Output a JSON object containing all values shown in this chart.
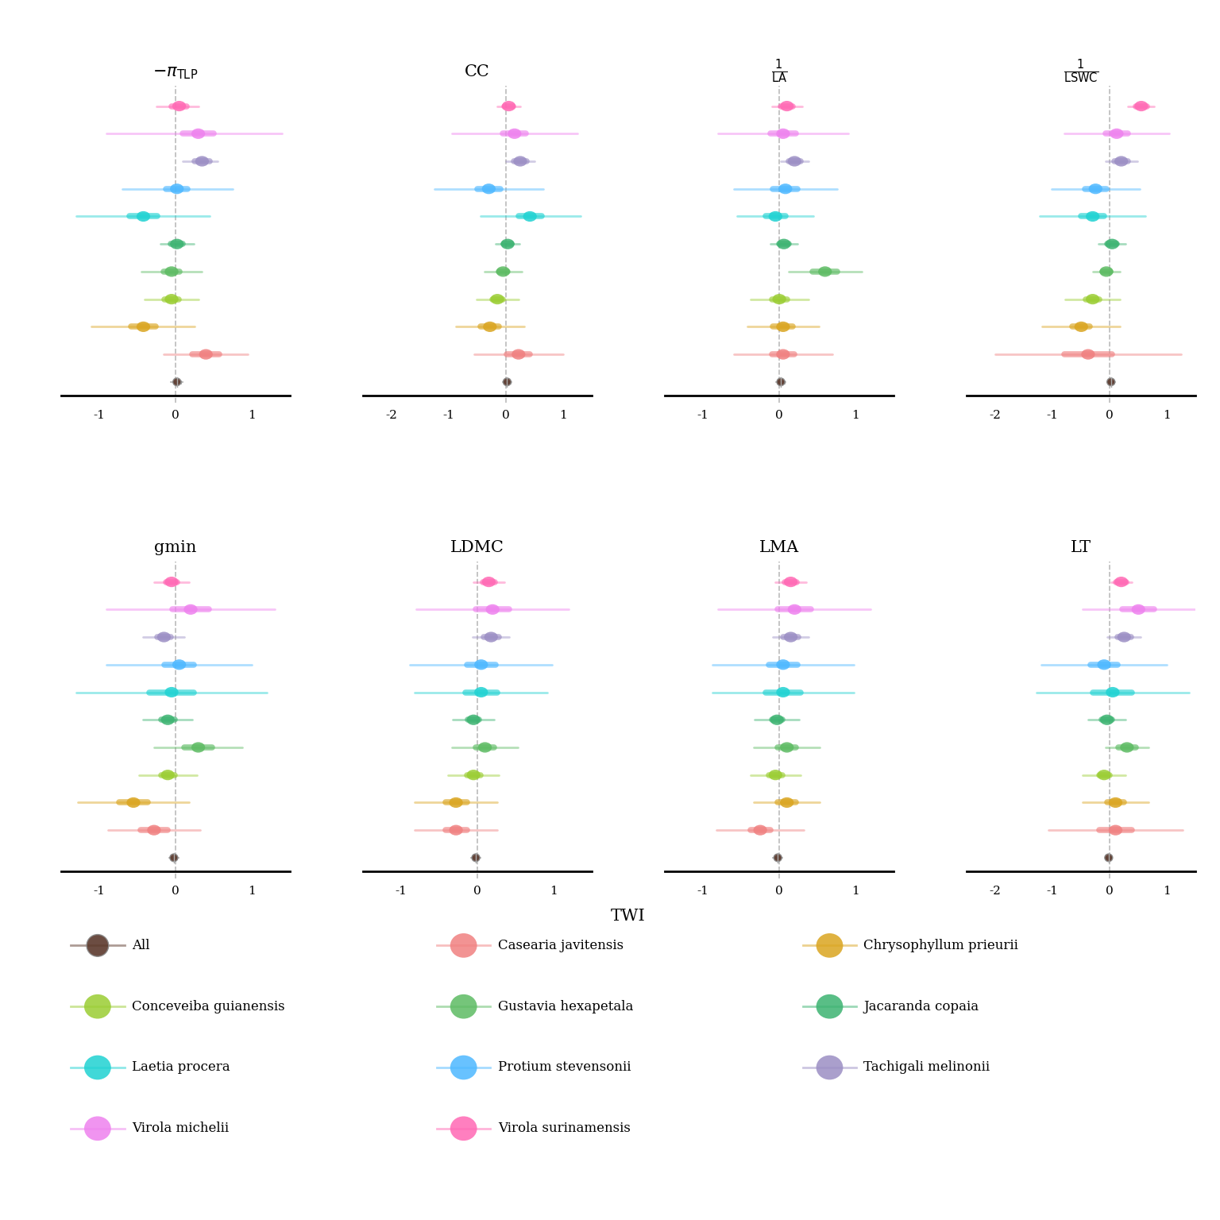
{
  "panels": [
    {
      "title": "$-\\pi_{\\mathrm{TLP}}$",
      "xlim": [
        -1.5,
        1.5
      ],
      "xticks": [
        -1,
        0,
        1
      ]
    },
    {
      "title": "CC",
      "xlim": [
        -2.5,
        1.5
      ],
      "xticks": [
        -2,
        -1,
        0,
        1
      ]
    },
    {
      "title": "$\\frac{1}{\\mathrm{LA}}$",
      "xlim": [
        -1.5,
        1.5
      ],
      "xticks": [
        -1,
        0,
        1
      ]
    },
    {
      "title": "$\\frac{1}{\\mathrm{LSWC}}$",
      "xlim": [
        -2.5,
        1.5
      ],
      "xticks": [
        -2,
        -1,
        0,
        1
      ]
    },
    {
      "title": "gmin",
      "xlim": [
        -1.5,
        1.5
      ],
      "xticks": [
        -1,
        0,
        1
      ]
    },
    {
      "title": "LDMC",
      "xlim": [
        -1.5,
        1.5
      ],
      "xticks": [
        -1,
        0,
        1
      ]
    },
    {
      "title": "LMA",
      "xlim": [
        -1.5,
        1.5
      ],
      "xticks": [
        -1,
        0,
        1
      ]
    },
    {
      "title": "LT",
      "xlim": [
        -2.5,
        1.5
      ],
      "xticks": [
        -2,
        -1,
        0,
        1
      ]
    }
  ],
  "colors": {
    "Virola surinamensis": "#FF69B4",
    "Virola michelii": "#EE82EE",
    "Tachigali melinonii": "#9B8EC4",
    "Protium stevensonii": "#4DB8FF",
    "Laetia procera": "#20D2D2",
    "Jacaranda copaia": "#3CB371",
    "Gustavia hexapetala": "#5DBB63",
    "Conceveiba guianensis": "#9ACD32",
    "Chrysophyllum prieurii": "#DAA520",
    "Casearia javitensis": "#F08080",
    "All": "#5C3A2D"
  },
  "data": {
    "neg_piTLP": {
      "Virola surinamensis": {
        "mean": 0.05,
        "lo": -0.25,
        "hi": 0.3,
        "lo2": -0.05,
        "hi2": 0.15
      },
      "Virola michelii": {
        "mean": 0.3,
        "lo": -0.9,
        "hi": 1.4,
        "lo2": 0.1,
        "hi2": 0.5
      },
      "Tachigali melinonii": {
        "mean": 0.35,
        "lo": 0.1,
        "hi": 0.55,
        "lo2": 0.25,
        "hi2": 0.45
      },
      "Protium stevensonii": {
        "mean": 0.02,
        "lo": -0.7,
        "hi": 0.75,
        "lo2": -0.12,
        "hi2": 0.16
      },
      "Laetia procera": {
        "mean": -0.42,
        "lo": -1.3,
        "hi": 0.45,
        "lo2": -0.6,
        "hi2": -0.24
      },
      "Jacaranda copaia": {
        "mean": 0.02,
        "lo": -0.2,
        "hi": 0.24,
        "lo2": -0.06,
        "hi2": 0.1
      },
      "Gustavia hexapetala": {
        "mean": -0.05,
        "lo": -0.45,
        "hi": 0.35,
        "lo2": -0.15,
        "hi2": 0.05
      },
      "Conceveiba guianensis": {
        "mean": -0.05,
        "lo": -0.4,
        "hi": 0.3,
        "lo2": -0.14,
        "hi2": 0.04
      },
      "Chrysophyllum prieurii": {
        "mean": -0.42,
        "lo": -1.1,
        "hi": 0.25,
        "lo2": -0.58,
        "hi2": -0.26
      },
      "Casearia javitensis": {
        "mean": 0.4,
        "lo": -0.15,
        "hi": 0.95,
        "lo2": 0.22,
        "hi2": 0.58
      },
      "All": {
        "mean": 0.02,
        "lo": -0.06,
        "hi": 0.1,
        "lo2": -0.01,
        "hi2": 0.05
      }
    },
    "CC": {
      "Virola surinamensis": {
        "mean": 0.05,
        "lo": -0.15,
        "hi": 0.25,
        "lo2": -0.03,
        "hi2": 0.13
      },
      "Virola michelii": {
        "mean": 0.15,
        "lo": -0.95,
        "hi": 1.25,
        "lo2": -0.05,
        "hi2": 0.35
      },
      "Tachigali melinonii": {
        "mean": 0.25,
        "lo": 0.0,
        "hi": 0.5,
        "lo2": 0.14,
        "hi2": 0.36
      },
      "Protium stevensonii": {
        "mean": -0.3,
        "lo": -1.25,
        "hi": 0.65,
        "lo2": -0.5,
        "hi2": -0.1
      },
      "Laetia procera": {
        "mean": 0.42,
        "lo": -0.45,
        "hi": 1.3,
        "lo2": 0.22,
        "hi2": 0.62
      },
      "Jacaranda copaia": {
        "mean": 0.03,
        "lo": -0.18,
        "hi": 0.24,
        "lo2": -0.04,
        "hi2": 0.1
      },
      "Gustavia hexapetala": {
        "mean": -0.05,
        "lo": -0.38,
        "hi": 0.28,
        "lo2": -0.13,
        "hi2": 0.03
      },
      "Conceveiba guianensis": {
        "mean": -0.15,
        "lo": -0.52,
        "hi": 0.22,
        "lo2": -0.24,
        "hi2": -0.06
      },
      "Chrysophyllum prieurii": {
        "mean": -0.28,
        "lo": -0.88,
        "hi": 0.32,
        "lo2": -0.44,
        "hi2": -0.12
      },
      "Casearia javitensis": {
        "mean": 0.22,
        "lo": -0.55,
        "hi": 1.0,
        "lo2": 0.02,
        "hi2": 0.42
      },
      "All": {
        "mean": 0.02,
        "lo": -0.06,
        "hi": 0.1,
        "lo2": -0.01,
        "hi2": 0.05
      }
    },
    "inv_LA": {
      "Virola surinamensis": {
        "mean": 0.1,
        "lo": -0.1,
        "hi": 0.3,
        "lo2": 0.02,
        "hi2": 0.18
      },
      "Virola michelii": {
        "mean": 0.05,
        "lo": -0.8,
        "hi": 0.9,
        "lo2": -0.12,
        "hi2": 0.22
      },
      "Tachigali melinonii": {
        "mean": 0.2,
        "lo": 0.02,
        "hi": 0.38,
        "lo2": 0.12,
        "hi2": 0.28
      },
      "Protium stevensonii": {
        "mean": 0.08,
        "lo": -0.6,
        "hi": 0.76,
        "lo2": -0.08,
        "hi2": 0.24
      },
      "Laetia procera": {
        "mean": -0.05,
        "lo": -0.55,
        "hi": 0.45,
        "lo2": -0.18,
        "hi2": 0.08
      },
      "Jacaranda copaia": {
        "mean": 0.06,
        "lo": -0.12,
        "hi": 0.24,
        "lo2": 0.0,
        "hi2": 0.12
      },
      "Gustavia hexapetala": {
        "mean": 0.6,
        "lo": 0.12,
        "hi": 1.08,
        "lo2": 0.44,
        "hi2": 0.76
      },
      "Conceveiba guianensis": {
        "mean": 0.0,
        "lo": -0.38,
        "hi": 0.38,
        "lo2": -0.1,
        "hi2": 0.1
      },
      "Chrysophyllum prieurii": {
        "mean": 0.05,
        "lo": -0.42,
        "hi": 0.52,
        "lo2": -0.08,
        "hi2": 0.18
      },
      "Casearia javitensis": {
        "mean": 0.05,
        "lo": -0.6,
        "hi": 0.7,
        "lo2": -0.1,
        "hi2": 0.2
      },
      "All": {
        "mean": 0.02,
        "lo": -0.04,
        "hi": 0.08,
        "lo2": -0.01,
        "hi2": 0.05
      }
    },
    "inv_LSWC": {
      "Virola surinamensis": {
        "mean": 0.55,
        "lo": 0.32,
        "hi": 0.78,
        "lo2": 0.45,
        "hi2": 0.65
      },
      "Virola michelii": {
        "mean": 0.12,
        "lo": -0.8,
        "hi": 1.04,
        "lo2": -0.08,
        "hi2": 0.32
      },
      "Tachigali melinonii": {
        "mean": 0.2,
        "lo": -0.08,
        "hi": 0.48,
        "lo2": 0.08,
        "hi2": 0.32
      },
      "Protium stevensonii": {
        "mean": -0.25,
        "lo": -1.02,
        "hi": 0.52,
        "lo2": -0.44,
        "hi2": -0.06
      },
      "Laetia procera": {
        "mean": -0.3,
        "lo": -1.22,
        "hi": 0.62,
        "lo2": -0.5,
        "hi2": -0.1
      },
      "Jacaranda copaia": {
        "mean": 0.04,
        "lo": -0.2,
        "hi": 0.28,
        "lo2": -0.04,
        "hi2": 0.12
      },
      "Gustavia hexapetala": {
        "mean": -0.06,
        "lo": -0.3,
        "hi": 0.18,
        "lo2": -0.13,
        "hi2": 0.01
      },
      "Conceveiba guianensis": {
        "mean": -0.3,
        "lo": -0.78,
        "hi": 0.18,
        "lo2": -0.42,
        "hi2": -0.18
      },
      "Chrysophyllum prieurii": {
        "mean": -0.5,
        "lo": -1.18,
        "hi": 0.18,
        "lo2": -0.65,
        "hi2": -0.35
      },
      "Casearia javitensis": {
        "mean": -0.38,
        "lo": -2.0,
        "hi": 1.24,
        "lo2": -0.8,
        "hi2": 0.04
      },
      "All": {
        "mean": 0.02,
        "lo": -0.05,
        "hi": 0.09,
        "lo2": -0.01,
        "hi2": 0.05
      }
    },
    "gmin": {
      "Virola surinamensis": {
        "mean": -0.05,
        "lo": -0.28,
        "hi": 0.18,
        "lo2": -0.12,
        "hi2": 0.02
      },
      "Virola michelii": {
        "mean": 0.2,
        "lo": -0.9,
        "hi": 1.3,
        "lo2": -0.04,
        "hi2": 0.44
      },
      "Tachigali melinonii": {
        "mean": -0.15,
        "lo": -0.42,
        "hi": 0.12,
        "lo2": -0.24,
        "hi2": -0.06
      },
      "Protium stevensonii": {
        "mean": 0.05,
        "lo": -0.9,
        "hi": 1.0,
        "lo2": -0.14,
        "hi2": 0.24
      },
      "Laetia procera": {
        "mean": -0.05,
        "lo": -1.3,
        "hi": 1.2,
        "lo2": -0.34,
        "hi2": 0.24
      },
      "Jacaranda copaia": {
        "mean": -0.1,
        "lo": -0.42,
        "hi": 0.22,
        "lo2": -0.19,
        "hi2": -0.01
      },
      "Gustavia hexapetala": {
        "mean": 0.3,
        "lo": -0.28,
        "hi": 0.88,
        "lo2": 0.12,
        "hi2": 0.48
      },
      "Conceveiba guianensis": {
        "mean": -0.1,
        "lo": -0.48,
        "hi": 0.28,
        "lo2": -0.19,
        "hi2": -0.01
      },
      "Chrysophyllum prieurii": {
        "mean": -0.55,
        "lo": -1.28,
        "hi": 0.18,
        "lo2": -0.74,
        "hi2": -0.36
      },
      "Casearia javitensis": {
        "mean": -0.28,
        "lo": -0.88,
        "hi": 0.32,
        "lo2": -0.46,
        "hi2": -0.1
      },
      "All": {
        "mean": -0.02,
        "lo": -0.08,
        "hi": 0.04,
        "lo2": -0.04,
        "hi2": 0.0
      }
    },
    "LDMC": {
      "Virola surinamensis": {
        "mean": 0.15,
        "lo": -0.05,
        "hi": 0.35,
        "lo2": 0.07,
        "hi2": 0.23
      },
      "Virola michelii": {
        "mean": 0.2,
        "lo": -0.8,
        "hi": 1.2,
        "lo2": -0.02,
        "hi2": 0.42
      },
      "Tachigali melinonii": {
        "mean": 0.18,
        "lo": -0.06,
        "hi": 0.42,
        "lo2": 0.08,
        "hi2": 0.28
      },
      "Protium stevensonii": {
        "mean": 0.05,
        "lo": -0.88,
        "hi": 0.98,
        "lo2": -0.14,
        "hi2": 0.24
      },
      "Laetia procera": {
        "mean": 0.05,
        "lo": -0.82,
        "hi": 0.92,
        "lo2": -0.16,
        "hi2": 0.26
      },
      "Jacaranda copaia": {
        "mean": -0.05,
        "lo": -0.32,
        "hi": 0.22,
        "lo2": -0.12,
        "hi2": 0.02
      },
      "Gustavia hexapetala": {
        "mean": 0.1,
        "lo": -0.33,
        "hi": 0.53,
        "lo2": -0.02,
        "hi2": 0.22
      },
      "Conceveiba guianensis": {
        "mean": -0.05,
        "lo": -0.38,
        "hi": 0.28,
        "lo2": -0.14,
        "hi2": 0.04
      },
      "Chrysophyllum prieurii": {
        "mean": -0.28,
        "lo": -0.82,
        "hi": 0.26,
        "lo2": -0.42,
        "hi2": -0.14
      },
      "Casearia javitensis": {
        "mean": -0.28,
        "lo": -0.82,
        "hi": 0.26,
        "lo2": -0.42,
        "hi2": -0.14
      },
      "All": {
        "mean": -0.02,
        "lo": -0.08,
        "hi": 0.04,
        "lo2": -0.04,
        "hi2": 0.0
      }
    },
    "LMA": {
      "Virola surinamensis": {
        "mean": 0.15,
        "lo": -0.05,
        "hi": 0.35,
        "lo2": 0.07,
        "hi2": 0.23
      },
      "Virola michelii": {
        "mean": 0.2,
        "lo": -0.8,
        "hi": 1.2,
        "lo2": -0.02,
        "hi2": 0.42
      },
      "Tachigali melinonii": {
        "mean": 0.15,
        "lo": -0.08,
        "hi": 0.38,
        "lo2": 0.05,
        "hi2": 0.25
      },
      "Protium stevensonii": {
        "mean": 0.05,
        "lo": -0.88,
        "hi": 0.98,
        "lo2": -0.14,
        "hi2": 0.24
      },
      "Laetia procera": {
        "mean": 0.05,
        "lo": -0.88,
        "hi": 0.98,
        "lo2": -0.18,
        "hi2": 0.28
      },
      "Jacaranda copaia": {
        "mean": -0.03,
        "lo": -0.32,
        "hi": 0.26,
        "lo2": -0.1,
        "hi2": 0.04
      },
      "Gustavia hexapetala": {
        "mean": 0.1,
        "lo": -0.33,
        "hi": 0.53,
        "lo2": -0.02,
        "hi2": 0.22
      },
      "Conceveiba guianensis": {
        "mean": -0.05,
        "lo": -0.38,
        "hi": 0.28,
        "lo2": -0.14,
        "hi2": 0.04
      },
      "Chrysophyllum prieurii": {
        "mean": 0.1,
        "lo": -0.33,
        "hi": 0.53,
        "lo2": -0.02,
        "hi2": 0.22
      },
      "Casearia javitensis": {
        "mean": -0.25,
        "lo": -0.82,
        "hi": 0.32,
        "lo2": -0.38,
        "hi2": -0.12
      },
      "All": {
        "mean": -0.02,
        "lo": -0.08,
        "hi": 0.04,
        "lo2": -0.04,
        "hi2": 0.0
      }
    },
    "LT": {
      "Virola surinamensis": {
        "mean": 0.2,
        "lo": 0.02,
        "hi": 0.38,
        "lo2": 0.11,
        "hi2": 0.29
      },
      "Virola michelii": {
        "mean": 0.5,
        "lo": -0.48,
        "hi": 1.48,
        "lo2": 0.22,
        "hi2": 0.78
      },
      "Tachigali melinonii": {
        "mean": 0.25,
        "lo": -0.04,
        "hi": 0.54,
        "lo2": 0.13,
        "hi2": 0.37
      },
      "Protium stevensonii": {
        "mean": -0.1,
        "lo": -1.2,
        "hi": 1.0,
        "lo2": -0.34,
        "hi2": 0.14
      },
      "Laetia procera": {
        "mean": 0.05,
        "lo": -1.28,
        "hi": 1.38,
        "lo2": -0.29,
        "hi2": 0.39
      },
      "Jacaranda copaia": {
        "mean": -0.05,
        "lo": -0.38,
        "hi": 0.28,
        "lo2": -0.14,
        "hi2": 0.04
      },
      "Gustavia hexapetala": {
        "mean": 0.3,
        "lo": -0.08,
        "hi": 0.68,
        "lo2": 0.15,
        "hi2": 0.45
      },
      "Conceveiba guianensis": {
        "mean": -0.1,
        "lo": -0.48,
        "hi": 0.28,
        "lo2": -0.19,
        "hi2": -0.01
      },
      "Chrysophyllum prieurii": {
        "mean": 0.1,
        "lo": -0.48,
        "hi": 0.68,
        "lo2": -0.04,
        "hi2": 0.24
      },
      "Casearia javitensis": {
        "mean": 0.1,
        "lo": -1.08,
        "hi": 1.28,
        "lo2": -0.19,
        "hi2": 0.39
      },
      "All": {
        "mean": -0.02,
        "lo": -0.08,
        "hi": 0.04,
        "lo2": -0.04,
        "hi2": 0.0
      }
    }
  },
  "panel_keys": [
    "neg_piTLP",
    "CC",
    "inv_LA",
    "inv_LSWC",
    "gmin",
    "LDMC",
    "LMA",
    "LT"
  ],
  "legend_layout": [
    [
      [
        "All",
        "#5C3A2D"
      ],
      [
        "Casearia javitensis",
        "#F08080"
      ],
      [
        "Chrysophyllum prieurii",
        "#DAA520"
      ]
    ],
    [
      [
        "Conceveiba guianensis",
        "#9ACD32"
      ],
      [
        "Gustavia hexapetala",
        "#5DBB63"
      ],
      [
        "Jacaranda copaia",
        "#3CB371"
      ]
    ],
    [
      [
        "Laetia procera",
        "#20D2D2"
      ],
      [
        "Protium stevensonii",
        "#4DB8FF"
      ],
      [
        "Tachigali melinonii",
        "#9B8EC4"
      ]
    ],
    [
      [
        "Virola michelii",
        "#EE82EE"
      ],
      [
        "Virola surinamensis",
        "#FF69B4"
      ]
    ]
  ],
  "xlabel": "TWI"
}
